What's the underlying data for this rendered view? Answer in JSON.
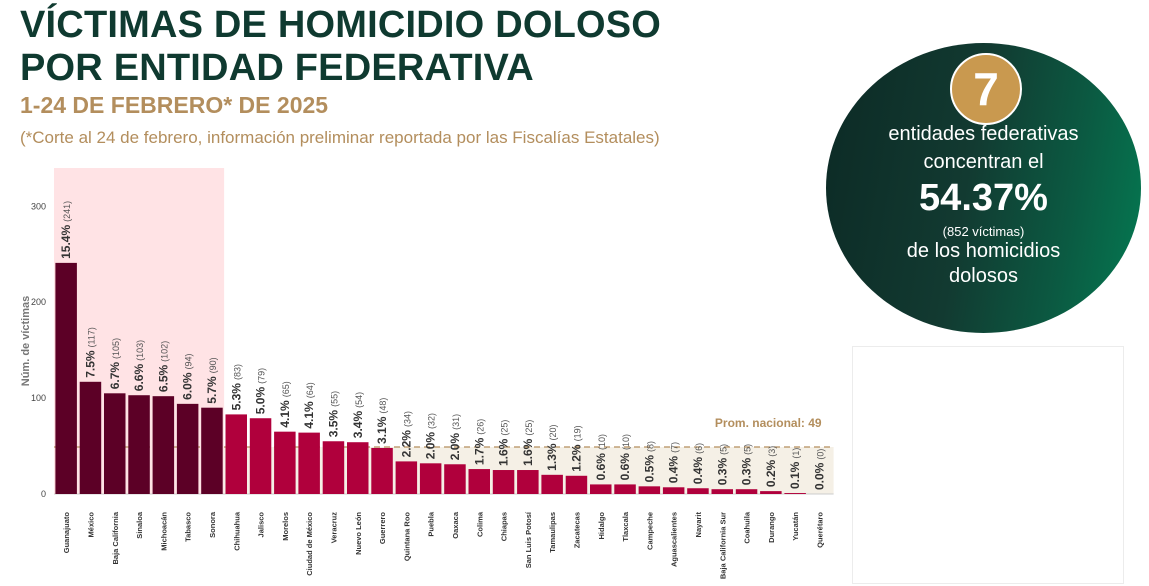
{
  "header": {
    "title_line1": "VÍCTIMAS DE HOMICIDIO DOLOSO",
    "title_line2": "POR ENTIDAD FEDERATIVA",
    "subtitle": "1-24 DE FEBRERO* DE 2025",
    "note": "(*Corte al 24 de febrero, información preliminar reportada por las Fiscalías Estatales)"
  },
  "summary": {
    "count": "7",
    "line1": "entidades federativas",
    "line2": "concentran el",
    "percent": "54.37%",
    "victims": "(852  víctimas)",
    "line3": "de los homicidios",
    "line4": "dolosos"
  },
  "colors": {
    "highlight": "#5c0026",
    "bar": "#b0003c",
    "highlight_band": "#ffe3e5",
    "average_band": "#f5f0e6",
    "average_line": "#b38e5d"
  },
  "chart_data": {
    "type": "bar",
    "ylabel": "Núm. de víctimas",
    "ylim": [
      0,
      340
    ],
    "yticks": [
      0,
      100,
      200,
      300
    ],
    "average": 49,
    "average_label": "Prom. nacional: 49",
    "highlighted_count": 7,
    "categories": [
      "Guanajuato",
      "México",
      "Baja California",
      "Sinaloa",
      "Michoacán",
      "Tabasco",
      "Sonora",
      "Chihuahua",
      "Jalisco",
      "Morelos",
      "Ciudad de México",
      "Veracruz",
      "Nuevo León",
      "Guerrero",
      "Quintana Roo",
      "Puebla",
      "Oaxaca",
      "Colima",
      "Chiapas",
      "San Luis Potosí",
      "Tamaulipas",
      "Zacatecas",
      "Hidalgo",
      "Tlaxcala",
      "Campeche",
      "Aguascalientes",
      "Nayarit",
      "Baja California Sur",
      "Coahuila",
      "Durango",
      "Yucatán",
      "Querétaro"
    ],
    "values": [
      241,
      117,
      105,
      103,
      102,
      94,
      90,
      83,
      79,
      65,
      64,
      55,
      54,
      48,
      34,
      32,
      31,
      26,
      25,
      25,
      20,
      19,
      10,
      10,
      8,
      7,
      6,
      5,
      5,
      3,
      1,
      0
    ],
    "percent_labels": [
      "15.4%",
      "7.5%",
      "6.7%",
      "6.6%",
      "6.5%",
      "6.0%",
      "5.7%",
      "5.3%",
      "5.0%",
      "4.1%",
      "4.1%",
      "3.5%",
      "3.4%",
      "3.1%",
      "2.2%",
      "2.0%",
      "2.0%",
      "1.7%",
      "1.6%",
      "1.6%",
      "1.3%",
      "1.2%",
      "0.6%",
      "0.6%",
      "0.5%",
      "0.4%",
      "0.4%",
      "0.3%",
      "0.3%",
      "0.2%",
      "0.1%",
      "0.0%"
    ],
    "count_labels": [
      "(241)",
      "(117)",
      "(105)",
      "(103)",
      "(102)",
      "(94)",
      "(90)",
      "(83)",
      "(79)",
      "(65)",
      "(64)",
      "(55)",
      "(54)",
      "(48)",
      "(34)",
      "(32)",
      "(31)",
      "(26)",
      "(25)",
      "(25)",
      "(20)",
      "(19)",
      "(10)",
      "(10)",
      "(8)",
      "(7)",
      "(6)",
      "(5)",
      "(5)",
      "(3)",
      "(1)",
      "(0)"
    ]
  }
}
